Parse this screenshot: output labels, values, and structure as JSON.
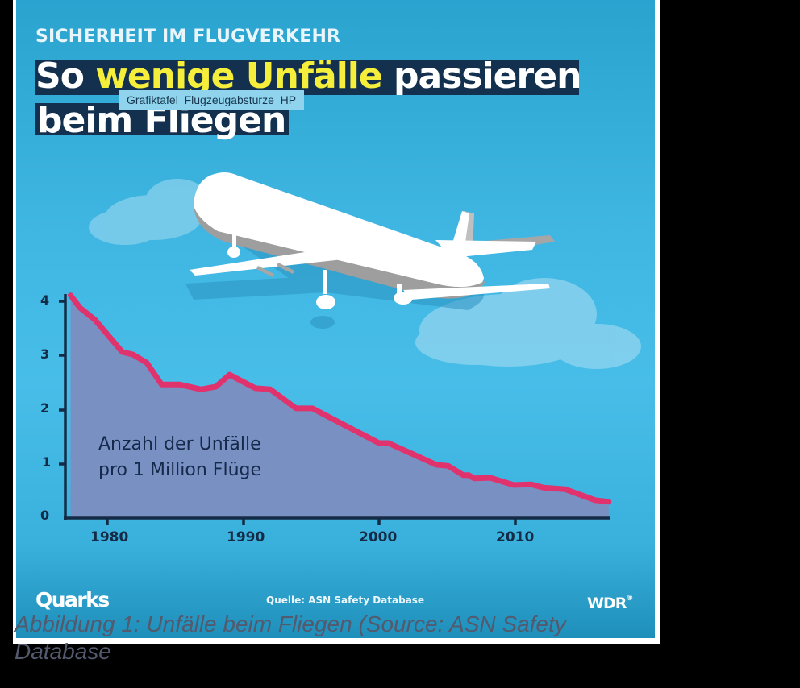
{
  "infographic": {
    "kicker": "SICHERHEIT IM FLUGVERKEHR",
    "title_line1_prefix": "So",
    "title_line1_highlight": "wenige Unfälle",
    "title_line1_suffix": "passieren",
    "title_line2": "beim Fliegen",
    "tooltip": "Grafiktafel_Flugzeugabsturze_HP",
    "series_label_line1": "Anzahl der Unfälle",
    "series_label_line2": "pro 1 Million Flüge",
    "source": "Quelle: ASN Safety Database",
    "logo_left": "Quarks",
    "logo_right": "WDR",
    "logo_right_mark": "®"
  },
  "caption": "Abbildung 1: Unfälle beim Fliegen (Source: ASN Safety Database",
  "colors": {
    "background_blue": "#3fb6e2",
    "title_bar": "#14304f",
    "highlight_yellow": "#f5ef3b",
    "line_pink": "#e0336e",
    "area_fill": "#7b8ec0",
    "axis_dark": "#152a45",
    "caption_text": "#535a6e"
  },
  "chart_data": {
    "type": "area",
    "title": "So wenige Unfälle passieren beim Fliegen",
    "subtitle": "SICHERHEIT IM FLUGVERKEHR",
    "xlabel": "",
    "ylabel": "Anzahl der Unfälle pro 1 Million Flüge",
    "x_ticks": [
      1980,
      1990,
      2000,
      2010
    ],
    "y_ticks": [
      0,
      1,
      2,
      3,
      4
    ],
    "xlim": [
      1977,
      2017
    ],
    "ylim": [
      0,
      4.2
    ],
    "grid": false,
    "legend": "none (in-chart label)",
    "series": [
      {
        "name": "Anzahl der Unfälle pro 1 Million Flüge",
        "x": [
          1977.3,
          1978,
          1979.1,
          1981.1,
          1981.9,
          1982.9,
          1984,
          1985.3,
          1986.9,
          1988,
          1989,
          1990.9,
          1992,
          1993.9,
          1995.1,
          2000,
          2000.7,
          2003.6,
          2004.2,
          2005.1,
          2006.2,
          2006.6,
          2007,
          2008.2,
          2009.9,
          2011.2,
          2012.1,
          2013.7,
          2015.9,
          2016.9
        ],
        "values": [
          4.1,
          3.87,
          3.65,
          3.06,
          3.01,
          2.86,
          2.46,
          2.46,
          2.37,
          2.42,
          2.64,
          2.39,
          2.37,
          2.02,
          2.02,
          1.38,
          1.38,
          1.05,
          0.98,
          0.96,
          0.79,
          0.79,
          0.73,
          0.74,
          0.61,
          0.62,
          0.56,
          0.53,
          0.33,
          0.3
        ]
      }
    ],
    "source": "Quelle: ASN Safety Database"
  }
}
